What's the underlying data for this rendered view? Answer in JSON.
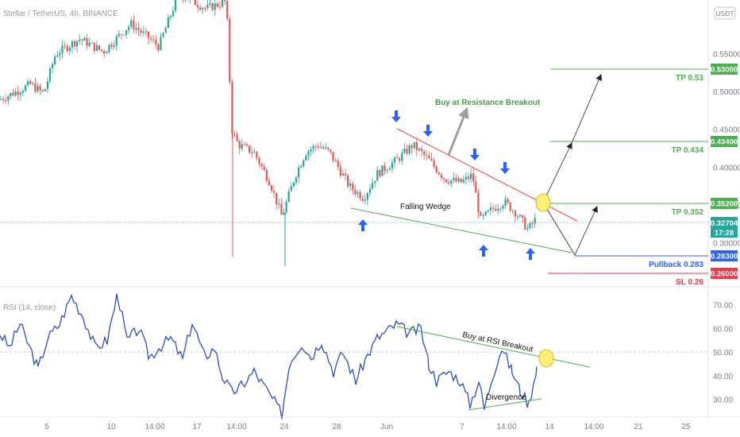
{
  "header": {
    "symbol": "Stellar / TetherUS, 4h, BINANCE",
    "currency": "USDT"
  },
  "chart_data": [
    {
      "type": "candlestick",
      "symbol": "Stellar / TetherUS, 4h, BINANCE",
      "ylim": [
        0.24,
        0.58
      ],
      "yticks": [
        0.3,
        0.35,
        0.4,
        0.45,
        0.5,
        0.55
      ],
      "xticks": [
        "5",
        "10",
        "14:00",
        "17",
        "14:00",
        "24",
        "28",
        "Jun",
        "7",
        "14:00",
        "14",
        "14:00",
        "21",
        "25"
      ],
      "last_price": 0.32704,
      "countdown": "17:28",
      "approx_close_path": [
        {
          "x": "5",
          "y": 0.487
        },
        {
          "x": "10",
          "y": 0.499
        },
        {
          "x": "14:00",
          "y": 0.565
        },
        {
          "x": "17",
          "y": 0.565
        },
        {
          "x": "14:00",
          "y": 0.505
        },
        {
          "x": "24",
          "y": 0.33
        },
        {
          "x": "28",
          "y": 0.365
        },
        {
          "x": "Jun",
          "y": 0.404
        },
        {
          "x": "7",
          "y": 0.317
        },
        {
          "x": "14:00",
          "y": 0.332
        }
      ],
      "levels": [
        {
          "label": "TP 0.53",
          "value": 0.53,
          "badge": "0.53000",
          "color": "#4caf50"
        },
        {
          "label": "TP 0.434",
          "value": 0.434,
          "badge": "0.43400",
          "color": "#4caf50"
        },
        {
          "label": "TP 0.352",
          "value": 0.352,
          "badge": "0.35200",
          "color": "#4caf50"
        },
        {
          "label": "Pullback 0.283",
          "value": 0.283,
          "badge": "0.28300",
          "color": "#2962ff"
        },
        {
          "label": "SL 0.26",
          "value": 0.26,
          "badge": "0.26000",
          "color": "#f23645"
        }
      ],
      "annotations": {
        "breakout_label": "Buy at Resistance Breakout",
        "wedge_label": "Falling Wedge"
      }
    },
    {
      "type": "line",
      "title": "RSI (14, close)",
      "ylim": [
        22,
        78
      ],
      "yticks": [
        30,
        40,
        50,
        60,
        70
      ],
      "yticklabels": [
        "30.00",
        "40.00",
        "50.00",
        "60.00",
        "70.00"
      ],
      "approx_series": [
        {
          "x": "5",
          "y": 52
        },
        {
          "x": "10",
          "y": 75
        },
        {
          "x": "17",
          "y": 64
        },
        {
          "x": "14:00",
          "y": 33
        },
        {
          "x": "24",
          "y": 24
        },
        {
          "x": "28",
          "y": 55
        },
        {
          "x": "Jun",
          "y": 62
        },
        {
          "x": "7",
          "y": 28
        },
        {
          "x": "14:00",
          "y": 52
        }
      ],
      "annotations": {
        "breakout_label": "Buy at RSI Breakout",
        "divergence_label": "Divergence"
      }
    }
  ],
  "colors": {
    "up": "#26a69a",
    "down": "#ef5350",
    "rsi": "#2a4fbf",
    "green_line": "#4caf50",
    "resistance": "#f44336",
    "arrow": "#2962ff",
    "highlight": "#fff176",
    "price_badge": "#26a69a"
  }
}
